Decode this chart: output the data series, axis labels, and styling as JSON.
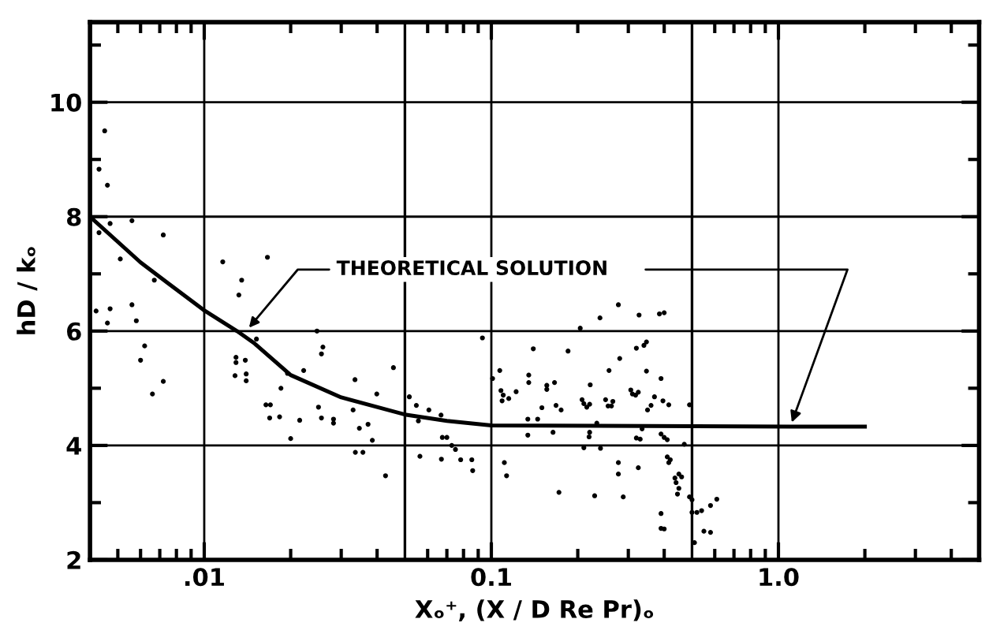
{
  "chart_data": {
    "type": "scatter",
    "xlabel": "Xₒ⁺, (X / D Re Pr)ₒ",
    "ylabel": "hD / kₒ",
    "log": "x",
    "xlim": [
      0.004,
      5
    ],
    "ylim": [
      2,
      11.4
    ],
    "xticks": [
      {
        "value": 0.005,
        "label": null
      },
      {
        "value": 0.006,
        "label": null
      },
      {
        "value": 0.007,
        "label": null
      },
      {
        "value": 0.008,
        "label": null
      },
      {
        "value": 0.009,
        "label": null
      },
      {
        "value": 0.01,
        "label": ".01"
      },
      {
        "value": 0.02,
        "label": null
      },
      {
        "value": 0.03,
        "label": null
      },
      {
        "value": 0.04,
        "label": null
      },
      {
        "value": 0.06,
        "label": null
      },
      {
        "value": 0.07,
        "label": null
      },
      {
        "value": 0.08,
        "label": null
      },
      {
        "value": 0.09,
        "label": null
      },
      {
        "value": 0.1,
        "label": "0.1"
      },
      {
        "value": 0.2,
        "label": null
      },
      {
        "value": 0.3,
        "label": null
      },
      {
        "value": 0.4,
        "label": null
      },
      {
        "value": 0.6,
        "label": null
      },
      {
        "value": 0.7,
        "label": null
      },
      {
        "value": 0.8,
        "label": null
      },
      {
        "value": 0.9,
        "label": null
      },
      {
        "value": 1.0,
        "label": "1.0"
      },
      {
        "value": 2,
        "label": null
      },
      {
        "value": 3,
        "label": null
      },
      {
        "value": 4,
        "label": null
      }
    ],
    "yticks": [
      2,
      {
        "value": 3,
        "label": null
      },
      4,
      {
        "value": 5,
        "label": null
      },
      6,
      {
        "value": 7,
        "label": null
      },
      8,
      {
        "value": 9,
        "label": null
      },
      10,
      {
        "value": 11,
        "label": null
      }
    ],
    "grid": true,
    "ref_lines": [
      {
        "axis": "x",
        "value": 0.05,
        "color": "#000000"
      },
      {
        "axis": "x",
        "value": 0.5,
        "color": "#000000"
      }
    ],
    "annotations": [
      {
        "text": "THEORETICAL SOLUTION",
        "x": 0.014,
        "y": 6.0
      }
    ],
    "series": [
      {
        "type": "line",
        "color": "#000000",
        "line_style": "solid",
        "marker": "none",
        "x": [
          0.004,
          0.006,
          0.0075,
          0.01,
          0.013,
          0.015,
          0.02,
          0.03,
          0.05,
          0.07,
          0.1,
          1.1,
          2.0
        ],
        "values": [
          8.0,
          7.2,
          6.83,
          6.36,
          6.0,
          5.78,
          5.23,
          4.84,
          4.54,
          4.43,
          4.35,
          4.33,
          4.33
        ]
      },
      {
        "color": "#000000",
        "marker": "circle",
        "x": [
          0.0045,
          0.0043,
          0.0046,
          0.0047,
          0.0043,
          0.0056,
          0.0072,
          0.0051,
          0.0067,
          0.0042,
          0.0047,
          0.0046,
          0.0056,
          0.0058,
          0.0062,
          0.006,
          0.0066,
          0.0072,
          0.0116,
          0.0166,
          0.0135,
          0.0132,
          0.0247,
          0.0152,
          0.0129,
          0.0129,
          0.0139,
          0.0128,
          0.014,
          0.014,
          0.0259,
          0.0256,
          0.0222,
          0.0195,
          0.0185,
          0.0164,
          0.017,
          0.0169,
          0.0183,
          0.02,
          0.0215,
          0.025,
          0.0256,
          0.0282,
          0.0282,
          0.0335,
          0.033,
          0.0347,
          0.0372,
          0.0336,
          0.0357,
          0.0399,
          0.0385,
          0.0456,
          0.0428,
          0.0518,
          0.0548,
          0.0557,
          0.0564,
          0.0606,
          0.0668,
          0.0675,
          0.07,
          0.067,
          0.0728,
          0.075,
          0.0782,
          0.0861,
          0.0855,
          0.0931,
          0.101,
          0.107,
          0.108,
          0.11,
          0.115,
          0.109,
          0.122,
          0.135,
          0.135,
          0.14,
          0.134,
          0.134,
          0.145,
          0.15,
          0.156,
          0.156,
          0.166,
          0.168,
          0.175,
          0.164,
          0.185,
          0.172,
          0.204,
          0.207,
          0.21,
          0.215,
          0.22,
          0.221,
          0.22,
          0.219,
          0.229,
          0.233,
          0.239,
          0.257,
          0.25,
          0.255,
          0.262,
          0.265,
          0.277,
          0.28,
          0.288,
          0.277,
          0.277,
          0.306,
          0.31,
          0.318,
          0.325,
          0.32,
          0.33,
          0.335,
          0.32,
          0.34,
          0.327,
          0.347,
          0.347,
          0.35,
          0.36,
          0.37,
          0.325,
          0.385,
          0.4,
          0.39,
          0.396,
          0.39,
          0.4,
          0.41,
          0.41,
          0.415,
          0.42,
          0.415,
          0.436,
          0.44,
          0.45,
          0.445,
          0.45,
          0.46,
          0.39,
          0.39,
          0.4,
          0.49,
          0.5,
          0.49,
          0.5,
          0.52,
          0.54,
          0.51,
          0.55,
          0.58,
          0.61,
          0.58,
          0.47,
          0.111,
          0.113,
          0.21,
          0.24
        ],
        "values": [
          9.5,
          8.83,
          8.55,
          7.88,
          7.72,
          7.93,
          7.68,
          7.26,
          6.89,
          6.35,
          6.39,
          6.14,
          6.46,
          6.18,
          5.74,
          5.49,
          4.9,
          5.12,
          7.21,
          7.29,
          6.89,
          6.63,
          6.0,
          5.86,
          5.54,
          5.45,
          5.49,
          5.22,
          5.25,
          5.13,
          5.72,
          5.6,
          5.31,
          5.26,
          5.0,
          4.71,
          4.71,
          4.48,
          4.5,
          4.12,
          4.44,
          4.67,
          4.48,
          4.39,
          4.46,
          5.15,
          4.62,
          4.3,
          4.37,
          3.88,
          3.88,
          4.9,
          4.09,
          5.36,
          3.47,
          4.85,
          4.7,
          4.43,
          3.81,
          4.62,
          4.53,
          4.14,
          4.14,
          3.76,
          4.0,
          3.93,
          3.75,
          3.56,
          3.75,
          5.88,
          5.17,
          5.31,
          4.96,
          4.88,
          4.82,
          4.78,
          4.94,
          5.23,
          5.1,
          5.69,
          4.46,
          4.18,
          4.46,
          4.66,
          4.98,
          5.05,
          5.1,
          4.7,
          4.62,
          4.23,
          5.65,
          3.18,
          6.05,
          4.8,
          4.73,
          4.67,
          4.72,
          5.06,
          4.23,
          4.15,
          3.12,
          4.39,
          6.23,
          5.31,
          4.8,
          4.69,
          4.69,
          4.77,
          6.46,
          5.52,
          3.1,
          3.7,
          3.5,
          4.97,
          4.9,
          4.88,
          4.93,
          4.13,
          4.11,
          4.29,
          5.7,
          5.75,
          6.28,
          5.81,
          5.3,
          4.62,
          4.7,
          4.85,
          3.61,
          6.3,
          6.32,
          5.17,
          4.78,
          4.2,
          4.14,
          4.1,
          3.8,
          3.7,
          3.75,
          4.71,
          3.43,
          3.35,
          3.25,
          3.15,
          3.5,
          3.45,
          2.81,
          2.55,
          2.54,
          3.1,
          3.05,
          4.71,
          2.83,
          2.83,
          2.86,
          2.3,
          2.5,
          2.48,
          3.06,
          2.95,
          4.02,
          3.7,
          3.47,
          3.96,
          3.95
        ]
      }
    ]
  }
}
